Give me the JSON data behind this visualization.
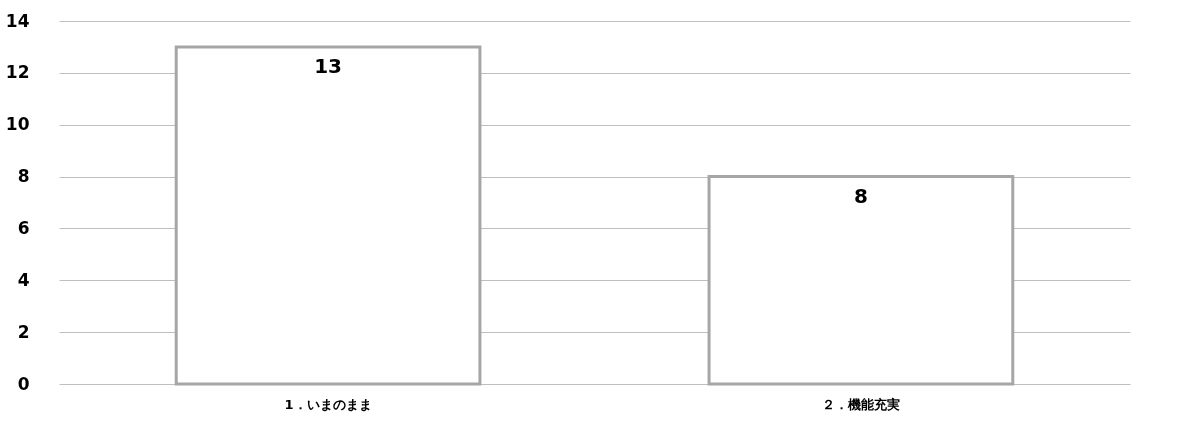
{
  "chart_data": {
    "type": "bar",
    "categories": [
      "1．いまのまま",
      "２．機能充実"
    ],
    "values": [
      13,
      8
    ],
    "color": "#a6a6a6",
    "ylim": [
      0,
      14
    ],
    "yticks": [
      0,
      2,
      4,
      6,
      8,
      10,
      12,
      14
    ],
    "grid": "y",
    "data_labels": true
  }
}
